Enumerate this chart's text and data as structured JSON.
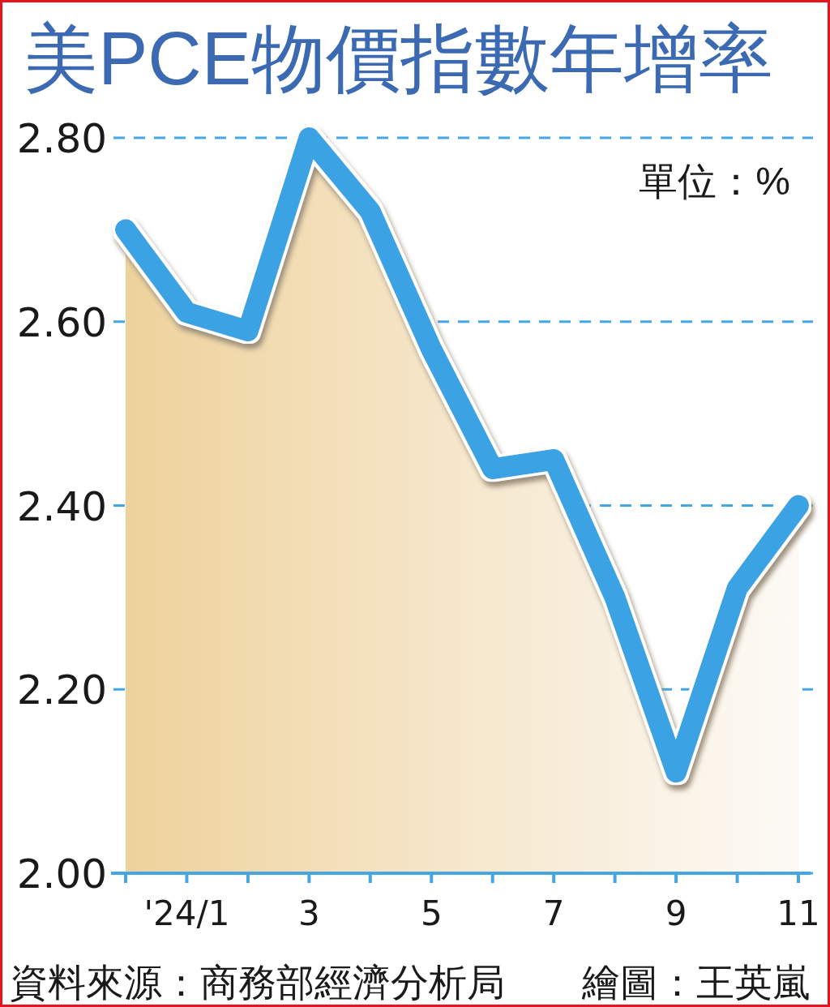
{
  "chart_data": {
    "type": "area",
    "title": "美PCE物價指數年增率",
    "categories": [
      null,
      "'24/1",
      null,
      "3",
      null,
      "5",
      null,
      "7",
      null,
      "9",
      null,
      "11"
    ],
    "series": [
      {
        "color": "#3ba3e4",
        "values": [
          2.7,
          2.61,
          2.59,
          2.8,
          2.72,
          2.57,
          2.44,
          2.45,
          2.3,
          2.11,
          2.31,
          2.4
        ]
      }
    ],
    "ylim": [
      2,
      2.8
    ],
    "yticks": [
      {
        "value": 2,
        "label": "2.00"
      },
      {
        "value": 2.2,
        "label": "2.20"
      },
      {
        "value": 2.4,
        "label": "2.40"
      },
      {
        "value": 2.6,
        "label": "2.60"
      },
      {
        "value": 2.8,
        "label": "2.80"
      }
    ],
    "grid": "y",
    "annotations": [
      "單位：%",
      "資料來源：商務部經濟分析局",
      "繪圖：王英嵐"
    ]
  }
}
